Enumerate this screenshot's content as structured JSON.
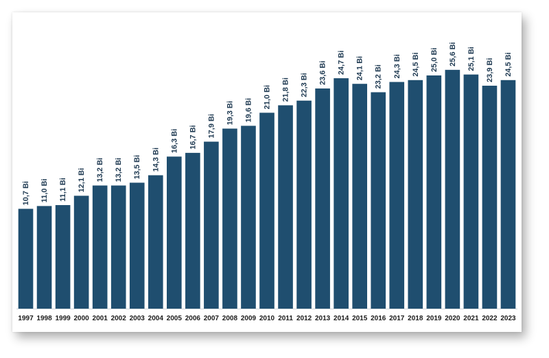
{
  "chart_data": {
    "type": "bar",
    "title": "",
    "xlabel": "",
    "ylabel": "",
    "ylim": [
      0,
      26
    ],
    "grid": false,
    "categories": [
      "1997",
      "1998",
      "1999",
      "2000",
      "2001",
      "2002",
      "2003",
      "2004",
      "2005",
      "2006",
      "2007",
      "2008",
      "2009",
      "2010",
      "2011",
      "2012",
      "2013",
      "2014",
      "2015",
      "2016",
      "2017",
      "2018",
      "2019",
      "2020",
      "2021",
      "2022",
      "2023"
    ],
    "series": [
      {
        "values": [
          10.7,
          11.0,
          11.1,
          12.1,
          13.2,
          13.2,
          13.5,
          14.3,
          16.3,
          16.7,
          17.9,
          19.3,
          19.6,
          21.0,
          21.8,
          22.3,
          23.6,
          24.7,
          24.1,
          23.2,
          24.3,
          24.5,
          25.0,
          25.6,
          25.1,
          23.9,
          24.5
        ]
      }
    ],
    "data_labels": [
      "10,7 Bi",
      "11,0 Bi",
      "11,1 Bi",
      "12,1 Bi",
      "13,2 Bi",
      "13,2 Bi",
      "13,5 Bi",
      "14,3 Bi",
      "16,3 Bi",
      "16,7 Bi",
      "17,9 Bi",
      "19,3 Bi",
      "19,6 Bi",
      "21,0 Bi",
      "21,8 Bi",
      "22,3 Bi",
      "23,6 Bi",
      "24,7 Bi",
      "24,1 Bi",
      "23,2 Bi",
      "24,3 Bi",
      "24,5 Bi",
      "25,0 Bi",
      "25,6 Bi",
      "25,1 Bi",
      "23,9 Bi",
      "24,5 Bi"
    ],
    "colors": {
      "bar": "#1f4e6f",
      "label": "#1f3a52",
      "tick": "#1a1a1a",
      "baseline": "#cfd5da"
    }
  }
}
